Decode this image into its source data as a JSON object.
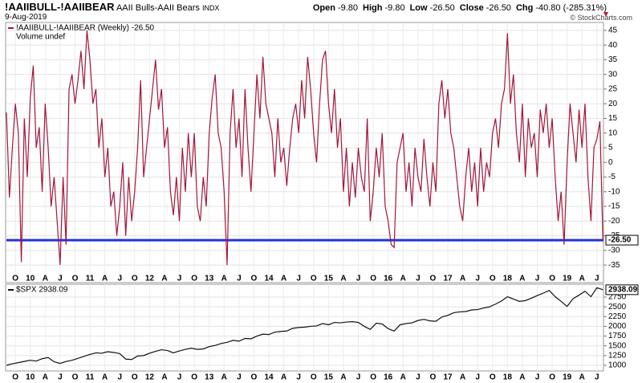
{
  "header": {
    "title": "!AAIIBULL-!AAIIBEAR",
    "subtitle": "AAII Bulls-AAII Bears",
    "exchange": "INDX",
    "date": "9-Aug-2019",
    "credit": "© StockCharts.com",
    "quote": [
      {
        "label": "Open",
        "value": "-9.80"
      },
      {
        "label": "High",
        "value": "-9.80"
      },
      {
        "label": "Low",
        "value": "-26.50"
      },
      {
        "label": "Close",
        "value": "-26.50"
      },
      {
        "label": "Chg",
        "value": "-40.80 (-285.31%)"
      }
    ]
  },
  "chart_data": [
    {
      "type": "line",
      "note": "Volume undef",
      "end_label": "-26.50",
      "hline": {
        "value": -26.5,
        "color": "#2233dd"
      },
      "xlim": [
        2009.6,
        2019.61
      ],
      "ylim": [
        -37.7,
        47.7
      ],
      "grid": true,
      "yticks": [
        -35,
        -30,
        -25,
        -20,
        -15,
        -10,
        -5,
        0,
        5,
        10,
        15,
        20,
        25,
        30,
        35,
        40,
        45
      ],
      "xticks": [
        {
          "value": 2009.75,
          "label": "O"
        },
        {
          "value": 2010,
          "label": "10"
        },
        {
          "value": 2010.25,
          "label": "A"
        },
        {
          "value": 2010.5,
          "label": "J"
        },
        {
          "value": 2010.75,
          "label": "O"
        },
        {
          "value": 2011,
          "label": "11"
        },
        {
          "value": 2011.25,
          "label": "A"
        },
        {
          "value": 2011.5,
          "label": "J"
        },
        {
          "value": 2011.75,
          "label": "O"
        },
        {
          "value": 2012,
          "label": "12"
        },
        {
          "value": 2012.25,
          "label": "A"
        },
        {
          "value": 2012.5,
          "label": "J"
        },
        {
          "value": 2012.75,
          "label": "O"
        },
        {
          "value": 2013,
          "label": "13"
        },
        {
          "value": 2013.25,
          "label": "A"
        },
        {
          "value": 2013.5,
          "label": "J"
        },
        {
          "value": 2013.75,
          "label": "O"
        },
        {
          "value": 2014,
          "label": "14"
        },
        {
          "value": 2014.25,
          "label": "A"
        },
        {
          "value": 2014.5,
          "label": "J"
        },
        {
          "value": 2014.75,
          "label": "O"
        },
        {
          "value": 2015,
          "label": "15"
        },
        {
          "value": 2015.25,
          "label": "A"
        },
        {
          "value": 2015.5,
          "label": "J"
        },
        {
          "value": 2015.75,
          "label": "O"
        },
        {
          "value": 2016,
          "label": "16"
        },
        {
          "value": 2016.25,
          "label": "A"
        },
        {
          "value": 2016.5,
          "label": "J"
        },
        {
          "value": 2016.75,
          "label": "O"
        },
        {
          "value": 2017,
          "label": "17"
        },
        {
          "value": 2017.25,
          "label": "A"
        },
        {
          "value": 2017.5,
          "label": "J"
        },
        {
          "value": 2017.75,
          "label": "O"
        },
        {
          "value": 2018,
          "label": "18"
        },
        {
          "value": 2018.25,
          "label": "A"
        },
        {
          "value": 2018.5,
          "label": "J"
        },
        {
          "value": 2018.75,
          "label": "O"
        },
        {
          "value": 2019,
          "label": "19"
        },
        {
          "value": 2019.25,
          "label": "A"
        },
        {
          "value": 2019.5,
          "label": "J"
        }
      ],
      "x": [
        2009.6,
        2009.65,
        2009.7,
        2009.75,
        2009.8,
        2009.85,
        2009.9,
        2009.95,
        2010,
        2010.05,
        2010.1,
        2010.15,
        2010.2,
        2010.25,
        2010.3,
        2010.35,
        2010.4,
        2010.45,
        2010.5,
        2010.55,
        2010.6,
        2010.65,
        2010.7,
        2010.75,
        2010.8,
        2010.85,
        2010.9,
        2010.95,
        2011,
        2011.05,
        2011.1,
        2011.15,
        2011.2,
        2011.25,
        2011.3,
        2011.35,
        2011.4,
        2011.45,
        2011.5,
        2011.55,
        2011.6,
        2011.65,
        2011.7,
        2011.75,
        2011.8,
        2011.85,
        2011.9,
        2011.95,
        2012,
        2012.05,
        2012.1,
        2012.15,
        2012.2,
        2012.25,
        2012.3,
        2012.35,
        2012.4,
        2012.45,
        2012.5,
        2012.55,
        2012.6,
        2012.65,
        2012.7,
        2012.75,
        2012.8,
        2012.85,
        2012.9,
        2012.95,
        2013,
        2013.05,
        2013.1,
        2013.15,
        2013.2,
        2013.25,
        2013.3,
        2013.35,
        2013.4,
        2013.45,
        2013.5,
        2013.55,
        2013.6,
        2013.65,
        2013.7,
        2013.75,
        2013.8,
        2013.85,
        2013.9,
        2013.95,
        2014,
        2014.05,
        2014.1,
        2014.15,
        2014.2,
        2014.25,
        2014.3,
        2014.35,
        2014.4,
        2014.45,
        2014.5,
        2014.55,
        2014.6,
        2014.65,
        2014.7,
        2014.75,
        2014.8,
        2014.85,
        2014.9,
        2014.95,
        2015,
        2015.05,
        2015.1,
        2015.15,
        2015.2,
        2015.25,
        2015.3,
        2015.35,
        2015.4,
        2015.45,
        2015.5,
        2015.55,
        2015.6,
        2015.65,
        2015.7,
        2015.75,
        2015.8,
        2015.85,
        2015.9,
        2015.95,
        2016,
        2016.05,
        2016.1,
        2016.15,
        2016.2,
        2016.25,
        2016.3,
        2016.35,
        2016.4,
        2016.45,
        2016.5,
        2016.55,
        2016.6,
        2016.65,
        2016.7,
        2016.75,
        2016.8,
        2016.85,
        2016.9,
        2016.95,
        2017,
        2017.05,
        2017.1,
        2017.15,
        2017.2,
        2017.25,
        2017.3,
        2017.35,
        2017.4,
        2017.45,
        2017.5,
        2017.55,
        2017.6,
        2017.65,
        2017.7,
        2017.75,
        2017.8,
        2017.85,
        2017.9,
        2017.95,
        2018,
        2018.05,
        2018.1,
        2018.15,
        2018.2,
        2018.25,
        2018.3,
        2018.35,
        2018.4,
        2018.45,
        2018.5,
        2018.55,
        2018.6,
        2018.65,
        2018.7,
        2018.75,
        2018.8,
        2018.85,
        2018.9,
        2018.95,
        2019,
        2019.05,
        2019.1,
        2019.15,
        2019.2,
        2019.25,
        2019.3,
        2019.35,
        2019.4,
        2019.45,
        2019.5,
        2019.55,
        2019.6
      ],
      "series": [
        {
          "name": "!AAIIBULL-!AAIIBEAR (Weekly) -26.50",
          "color": "#a3153a",
          "values": [
            17,
            -12,
            5,
            20,
            10,
            -34,
            15,
            -5,
            22,
            33,
            5,
            12,
            -10,
            20,
            5,
            -15,
            -5,
            -20,
            -35,
            -5,
            -28,
            25,
            30,
            20,
            28,
            38,
            25,
            45,
            35,
            20,
            25,
            5,
            15,
            -5,
            5,
            -15,
            -10,
            -25,
            -15,
            0,
            -25,
            -5,
            -20,
            -10,
            5,
            28,
            -5,
            5,
            15,
            25,
            35,
            18,
            25,
            5,
            12,
            -10,
            -18,
            -5,
            -20,
            5,
            -10,
            10,
            -5,
            10,
            -15,
            -20,
            -5,
            -15,
            10,
            22,
            30,
            10,
            5,
            -10,
            -35,
            10,
            25,
            5,
            15,
            -5,
            25,
            5,
            -10,
            10,
            30,
            15,
            36,
            20,
            15,
            10,
            -5,
            15,
            0,
            5,
            -8,
            5,
            15,
            20,
            10,
            28,
            15,
            36,
            25,
            10,
            0,
            20,
            35,
            38,
            20,
            10,
            25,
            5,
            15,
            -10,
            5,
            -15,
            0,
            -12,
            5,
            -5,
            -10,
            15,
            -20,
            -10,
            5,
            -5,
            10,
            -15,
            -20,
            -28,
            -29,
            0,
            5,
            10,
            -10,
            0,
            -15,
            5,
            -5,
            -10,
            8,
            -5,
            -15,
            0,
            -10,
            20,
            28,
            15,
            25,
            10,
            5,
            -5,
            -15,
            -20,
            -5,
            5,
            -10,
            0,
            -15,
            5,
            -10,
            0,
            -5,
            10,
            15,
            5,
            20,
            25,
            44,
            20,
            30,
            10,
            0,
            20,
            -5,
            15,
            5,
            10,
            -5,
            18,
            10,
            20,
            5,
            15,
            -5,
            -20,
            -10,
            -28,
            0,
            20,
            10,
            0,
            18,
            5,
            20,
            -5,
            -20,
            5,
            8,
            14,
            -26.5
          ]
        }
      ]
    },
    {
      "type": "line",
      "end_label": "2938.09",
      "xlim": [
        2009.6,
        2019.61
      ],
      "ylim": [
        856,
        3038
      ],
      "grid": true,
      "yticks": [
        1000,
        1250,
        1500,
        1750,
        2000,
        2250,
        2500,
        2750
      ],
      "xticks": [
        {
          "value": 2009.75,
          "label": "O"
        },
        {
          "value": 2010,
          "label": "10"
        },
        {
          "value": 2010.25,
          "label": "A"
        },
        {
          "value": 2010.5,
          "label": "J"
        },
        {
          "value": 2010.75,
          "label": "O"
        },
        {
          "value": 2011,
          "label": "11"
        },
        {
          "value": 2011.25,
          "label": "A"
        },
        {
          "value": 2011.5,
          "label": "J"
        },
        {
          "value": 2011.75,
          "label": "O"
        },
        {
          "value": 2012,
          "label": "12"
        },
        {
          "value": 2012.25,
          "label": "A"
        },
        {
          "value": 2012.5,
          "label": "J"
        },
        {
          "value": 2012.75,
          "label": "O"
        },
        {
          "value": 2013,
          "label": "13"
        },
        {
          "value": 2013.25,
          "label": "A"
        },
        {
          "value": 2013.5,
          "label": "J"
        },
        {
          "value": 2013.75,
          "label": "O"
        },
        {
          "value": 2014,
          "label": "14"
        },
        {
          "value": 2014.25,
          "label": "A"
        },
        {
          "value": 2014.5,
          "label": "J"
        },
        {
          "value": 2014.75,
          "label": "O"
        },
        {
          "value": 2015,
          "label": "15"
        },
        {
          "value": 2015.25,
          "label": "A"
        },
        {
          "value": 2015.5,
          "label": "J"
        },
        {
          "value": 2015.75,
          "label": "O"
        },
        {
          "value": 2016,
          "label": "16"
        },
        {
          "value": 2016.25,
          "label": "A"
        },
        {
          "value": 2016.5,
          "label": "J"
        },
        {
          "value": 2016.75,
          "label": "O"
        },
        {
          "value": 2017,
          "label": "17"
        },
        {
          "value": 2017.25,
          "label": "A"
        },
        {
          "value": 2017.5,
          "label": "J"
        },
        {
          "value": 2017.75,
          "label": "O"
        },
        {
          "value": 2018,
          "label": "18"
        },
        {
          "value": 2018.25,
          "label": "A"
        },
        {
          "value": 2018.5,
          "label": "J"
        },
        {
          "value": 2018.75,
          "label": "O"
        },
        {
          "value": 2019,
          "label": "19"
        },
        {
          "value": 2019.25,
          "label": "A"
        },
        {
          "value": 2019.5,
          "label": "J"
        }
      ],
      "x": [
        2009.6,
        2009.7,
        2009.8,
        2009.9,
        2010,
        2010.1,
        2010.2,
        2010.3,
        2010.4,
        2010.5,
        2010.6,
        2010.7,
        2010.8,
        2010.9,
        2011,
        2011.1,
        2011.2,
        2011.3,
        2011.4,
        2011.5,
        2011.6,
        2011.7,
        2011.8,
        2011.9,
        2012,
        2012.1,
        2012.2,
        2012.3,
        2012.4,
        2012.5,
        2012.6,
        2012.7,
        2012.8,
        2012.9,
        2013,
        2013.1,
        2013.2,
        2013.3,
        2013.4,
        2013.5,
        2013.6,
        2013.7,
        2013.8,
        2013.9,
        2014,
        2014.1,
        2014.2,
        2014.3,
        2014.4,
        2014.5,
        2014.6,
        2014.7,
        2014.8,
        2014.9,
        2015,
        2015.1,
        2015.2,
        2015.3,
        2015.4,
        2015.5,
        2015.6,
        2015.7,
        2015.8,
        2015.9,
        2016,
        2016.1,
        2016.2,
        2016.3,
        2016.4,
        2016.5,
        2016.6,
        2016.7,
        2016.8,
        2016.9,
        2017,
        2017.1,
        2017.2,
        2017.3,
        2017.4,
        2017.5,
        2017.6,
        2017.7,
        2017.8,
        2017.9,
        2018,
        2018.1,
        2018.2,
        2018.3,
        2018.4,
        2018.5,
        2018.6,
        2018.7,
        2018.8,
        2018.9,
        2019,
        2019.1,
        2019.2,
        2019.3,
        2019.4,
        2019.5,
        2019.6
      ],
      "series": [
        {
          "name": "$SPX 2938.09",
          "color": "#111111",
          "values": [
            1000,
            1040,
            1070,
            1100,
            1130,
            1110,
            1170,
            1200,
            1090,
            1050,
            1100,
            1130,
            1180,
            1230,
            1280,
            1320,
            1310,
            1350,
            1330,
            1300,
            1160,
            1150,
            1240,
            1250,
            1310,
            1360,
            1400,
            1380,
            1320,
            1370,
            1410,
            1440,
            1410,
            1420,
            1480,
            1510,
            1560,
            1590,
            1640,
            1620,
            1690,
            1680,
            1750,
            1800,
            1790,
            1850,
            1870,
            1880,
            1950,
            1970,
            1980,
            2000,
            2010,
            2070,
            2040,
            2100,
            2090,
            2110,
            2120,
            2100,
            2000,
            1920,
            2080,
            2060,
            1940,
            1880,
            2040,
            2070,
            2090,
            2150,
            2180,
            2140,
            2130,
            2240,
            2280,
            2350,
            2370,
            2380,
            2420,
            2430,
            2470,
            2500,
            2570,
            2650,
            2760,
            2700,
            2640,
            2660,
            2720,
            2790,
            2850,
            2920,
            2760,
            2640,
            2510,
            2710,
            2800,
            2900,
            2760,
            2990,
            2938.09
          ]
        }
      ]
    }
  ]
}
